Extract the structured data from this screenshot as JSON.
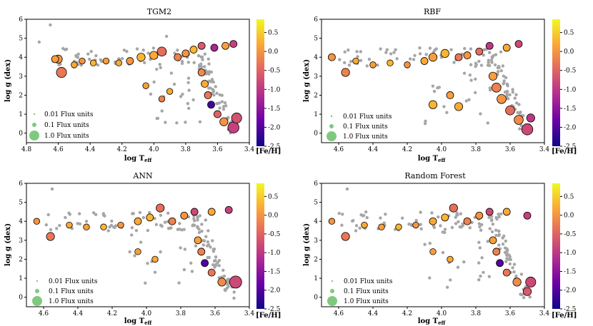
{
  "chart_data": [
    {
      "type": "scatter",
      "title": "TGM2",
      "xlabel": "log T",
      "xlabel_sub": "eff",
      "ylabel": "log g (dex)",
      "xlim": [
        4.8,
        3.4
      ],
      "ylim": [
        -0.5,
        6
      ],
      "xticks": [
        "4.8",
        "4.6",
        "4.4",
        "4.2",
        "4.0",
        "3.8",
        "3.6",
        "3.4"
      ],
      "yticks": [
        "0",
        "1",
        "2",
        "3",
        "4",
        "5",
        "6"
      ],
      "legend": [
        "0.01 Flux units",
        "0.1 Flux units",
        "1.0 Flux units"
      ],
      "colorbar": {
        "label": "[Fe/H]",
        "range": [
          -2.5,
          0.85
        ],
        "ticks": [
          "0.5",
          "0.0",
          "-0.5",
          "-1.0",
          "-1.5",
          "-2.0",
          "-2.5"
        ]
      },
      "points": [
        {
          "x": 4.72,
          "y": 4.8,
          "feh": null,
          "s": 0.3
        },
        {
          "x": 4.65,
          "y": 5.7,
          "feh": null,
          "s": 0.2
        },
        {
          "x": 4.6,
          "y": 3.9,
          "feh": 0.0,
          "s": 0.6
        },
        {
          "x": 4.58,
          "y": 3.2,
          "feh": -0.3,
          "s": 0.8
        },
        {
          "x": 4.62,
          "y": 3.9,
          "feh": 0.1,
          "s": 0.5
        },
        {
          "x": 4.5,
          "y": 3.6,
          "feh": 0.2,
          "s": 0.4
        },
        {
          "x": 4.45,
          "y": 3.8,
          "feh": 0.0,
          "s": 0.4
        },
        {
          "x": 4.38,
          "y": 3.7,
          "feh": 0.3,
          "s": 0.4
        },
        {
          "x": 4.3,
          "y": 3.8,
          "feh": 0.1,
          "s": 0.4
        },
        {
          "x": 4.22,
          "y": 3.7,
          "feh": 0.2,
          "s": 0.4
        },
        {
          "x": 4.15,
          "y": 3.8,
          "feh": 0.0,
          "s": 0.5
        },
        {
          "x": 4.08,
          "y": 4.0,
          "feh": 0.3,
          "s": 0.6
        },
        {
          "x": 4.0,
          "y": 4.1,
          "feh": 0.2,
          "s": 0.6
        },
        {
          "x": 3.95,
          "y": 4.3,
          "feh": -0.4,
          "s": 0.7
        },
        {
          "x": 3.92,
          "y": 5.1,
          "feh": null,
          "s": 0.3
        },
        {
          "x": 3.85,
          "y": 4.0,
          "feh": -0.2,
          "s": 0.5
        },
        {
          "x": 3.8,
          "y": 4.2,
          "feh": 0.0,
          "s": 0.5
        },
        {
          "x": 3.75,
          "y": 4.4,
          "feh": 0.3,
          "s": 0.5
        },
        {
          "x": 3.7,
          "y": 4.6,
          "feh": -0.6,
          "s": 0.5
        },
        {
          "x": 3.62,
          "y": 4.5,
          "feh": -1.2,
          "s": 0.5
        },
        {
          "x": 3.55,
          "y": 4.6,
          "feh": 0.1,
          "s": 0.5
        },
        {
          "x": 3.5,
          "y": 4.7,
          "feh": -0.9,
          "s": 0.5
        },
        {
          "x": 3.7,
          "y": 3.2,
          "feh": -0.1,
          "s": 0.5
        },
        {
          "x": 3.68,
          "y": 2.6,
          "feh": 0.2,
          "s": 0.5
        },
        {
          "x": 3.66,
          "y": 2.0,
          "feh": -0.3,
          "s": 0.5
        },
        {
          "x": 3.64,
          "y": 1.5,
          "feh": -2.1,
          "s": 0.5
        },
        {
          "x": 3.6,
          "y": 1.0,
          "feh": -0.5,
          "s": 0.5
        },
        {
          "x": 3.56,
          "y": 0.6,
          "feh": 0.0,
          "s": 0.6
        },
        {
          "x": 3.5,
          "y": 0.3,
          "feh": -0.9,
          "s": 0.9
        },
        {
          "x": 3.48,
          "y": 0.8,
          "feh": -0.7,
          "s": 0.8
        },
        {
          "x": 3.9,
          "y": 2.2,
          "feh": 0.2,
          "s": 0.4
        },
        {
          "x": 3.95,
          "y": 1.8,
          "feh": -0.2,
          "s": 0.4
        },
        {
          "x": 4.05,
          "y": 2.5,
          "feh": 0.1,
          "s": 0.4
        }
      ]
    },
    {
      "type": "scatter",
      "title": "RBF",
      "xlabel": "log T",
      "xlabel_sub": "eff",
      "ylabel": "log g (dex)",
      "xlim": [
        4.7,
        3.4
      ],
      "ylim": [
        -0.5,
        6
      ],
      "xticks": [
        "4.6",
        "4.4",
        "4.2",
        "4.0",
        "3.8",
        "3.6",
        "3.4"
      ],
      "yticks": [
        "0",
        "1",
        "2",
        "3",
        "4",
        "5",
        "6"
      ],
      "legend": [
        "0.01 Flux units",
        "0.1 Flux units",
        "1.0 Flux units"
      ],
      "colorbar": {
        "label": "[Fe/H]",
        "range": [
          -2.5,
          0.85
        ],
        "ticks": [
          "0.5",
          "0.0",
          "-0.5",
          "-1.0",
          "-1.5",
          "-2.0",
          "-2.5"
        ]
      },
      "points": [
        {
          "x": 4.64,
          "y": 4.0,
          "feh": 0.0,
          "s": 0.5
        },
        {
          "x": 4.56,
          "y": 3.2,
          "feh": -0.2,
          "s": 0.6
        },
        {
          "x": 4.5,
          "y": 3.8,
          "feh": 0.2,
          "s": 0.4
        },
        {
          "x": 4.4,
          "y": 3.6,
          "feh": 0.1,
          "s": 0.4
        },
        {
          "x": 4.3,
          "y": 3.7,
          "feh": 0.3,
          "s": 0.4
        },
        {
          "x": 4.2,
          "y": 3.6,
          "feh": 0.0,
          "s": 0.4
        },
        {
          "x": 4.1,
          "y": 3.8,
          "feh": 0.2,
          "s": 0.5
        },
        {
          "x": 4.05,
          "y": 4.0,
          "feh": 0.1,
          "s": 0.6
        },
        {
          "x": 3.98,
          "y": 4.2,
          "feh": 0.3,
          "s": 0.6
        },
        {
          "x": 3.9,
          "y": 4.0,
          "feh": -0.3,
          "s": 0.5
        },
        {
          "x": 3.85,
          "y": 4.1,
          "feh": 0.0,
          "s": 0.5
        },
        {
          "x": 3.78,
          "y": 4.3,
          "feh": -0.4,
          "s": 0.5
        },
        {
          "x": 3.72,
          "y": 4.6,
          "feh": -1.0,
          "s": 0.5
        },
        {
          "x": 3.62,
          "y": 4.5,
          "feh": 0.2,
          "s": 0.5
        },
        {
          "x": 3.55,
          "y": 4.7,
          "feh": -0.8,
          "s": 0.5
        },
        {
          "x": 3.7,
          "y": 3.0,
          "feh": 0.1,
          "s": 0.6
        },
        {
          "x": 3.68,
          "y": 2.4,
          "feh": -0.2,
          "s": 0.7
        },
        {
          "x": 3.65,
          "y": 1.8,
          "feh": 0.0,
          "s": 0.7
        },
        {
          "x": 3.6,
          "y": 1.2,
          "feh": -0.4,
          "s": 0.7
        },
        {
          "x": 3.55,
          "y": 0.7,
          "feh": -0.1,
          "s": 0.7
        },
        {
          "x": 3.5,
          "y": 0.2,
          "feh": -0.8,
          "s": 0.9
        },
        {
          "x": 3.48,
          "y": 0.8,
          "feh": -1.0,
          "s": 0.6
        },
        {
          "x": 4.05,
          "y": 1.5,
          "feh": 0.3,
          "s": 0.6
        },
        {
          "x": 3.95,
          "y": 2.0,
          "feh": 0.1,
          "s": 0.5
        },
        {
          "x": 3.9,
          "y": 1.4,
          "feh": 0.2,
          "s": 0.6
        }
      ]
    },
    {
      "type": "scatter",
      "title": "ANN",
      "xlabel": "log T",
      "xlabel_sub": "eff",
      "ylabel": "log g (dex)",
      "xlim": [
        4.7,
        3.4
      ],
      "ylim": [
        -0.5,
        6
      ],
      "xticks": [
        "4.6",
        "4.4",
        "4.2",
        "4.0",
        "3.8",
        "3.6",
        "3.4"
      ],
      "yticks": [
        "0",
        "1",
        "2",
        "3",
        "4",
        "5",
        "6"
      ],
      "legend": [
        "0.01 Flux units",
        "0.1 Flux units",
        "1.0 Flux units"
      ],
      "colorbar": {
        "label": "[Fe/H]",
        "range": [
          -2.5,
          0.85
        ],
        "ticks": [
          "0.5",
          "0.0",
          "-0.5",
          "-1.0",
          "-1.5",
          "-2.0",
          "-2.5"
        ]
      },
      "points": [
        {
          "x": 4.64,
          "y": 4.0,
          "feh": 0.0,
          "s": 0.4
        },
        {
          "x": 4.56,
          "y": 3.2,
          "feh": -0.3,
          "s": 0.6
        },
        {
          "x": 4.55,
          "y": 5.7,
          "feh": null,
          "s": 0.2
        },
        {
          "x": 4.45,
          "y": 3.8,
          "feh": 0.2,
          "s": 0.4
        },
        {
          "x": 4.35,
          "y": 3.7,
          "feh": 0.1,
          "s": 0.4
        },
        {
          "x": 4.25,
          "y": 3.7,
          "feh": 0.3,
          "s": 0.4
        },
        {
          "x": 4.15,
          "y": 3.8,
          "feh": 0.0,
          "s": 0.4
        },
        {
          "x": 4.05,
          "y": 4.0,
          "feh": 0.2,
          "s": 0.5
        },
        {
          "x": 3.98,
          "y": 4.2,
          "feh": 0.3,
          "s": 0.5
        },
        {
          "x": 3.92,
          "y": 4.7,
          "feh": -0.4,
          "s": 0.6
        },
        {
          "x": 3.85,
          "y": 4.0,
          "feh": -0.2,
          "s": 0.5
        },
        {
          "x": 3.78,
          "y": 4.3,
          "feh": 0.0,
          "s": 0.5
        },
        {
          "x": 3.72,
          "y": 4.5,
          "feh": -0.8,
          "s": 0.5
        },
        {
          "x": 3.62,
          "y": 4.5,
          "feh": 0.2,
          "s": 0.5
        },
        {
          "x": 3.52,
          "y": 4.6,
          "feh": -0.9,
          "s": 0.5
        },
        {
          "x": 3.7,
          "y": 3.0,
          "feh": 0.1,
          "s": 0.5
        },
        {
          "x": 3.68,
          "y": 2.4,
          "feh": -0.2,
          "s": 0.5
        },
        {
          "x": 3.66,
          "y": 1.8,
          "feh": -2.0,
          "s": 0.5
        },
        {
          "x": 3.62,
          "y": 1.3,
          "feh": -0.3,
          "s": 0.5
        },
        {
          "x": 3.56,
          "y": 0.8,
          "feh": -0.1,
          "s": 0.6
        },
        {
          "x": 3.48,
          "y": 0.8,
          "feh": -0.8,
          "s": 1.0
        },
        {
          "x": 3.95,
          "y": 2.0,
          "feh": 0.2,
          "s": 0.4
        },
        {
          "x": 4.05,
          "y": 2.4,
          "feh": 0.1,
          "s": 0.4
        }
      ]
    },
    {
      "type": "scatter",
      "title": "Random Forest",
      "xlabel": "log T",
      "xlabel_sub": "eff",
      "ylabel": "log g (dex)",
      "xlim": [
        4.7,
        3.4
      ],
      "ylim": [
        -0.5,
        6
      ],
      "xticks": [
        "4.6",
        "4.4",
        "4.2",
        "4.0",
        "3.8",
        "3.6",
        "3.4"
      ],
      "yticks": [
        "0",
        "1",
        "2",
        "3",
        "4",
        "5",
        "6"
      ],
      "legend": [
        "0.01 Flux units",
        "0.1 Flux units",
        "1.0 Flux units"
      ],
      "colorbar": {
        "label": "[Fe/H]",
        "range": [
          -2.5,
          0.85
        ],
        "ticks": [
          "0.5",
          "0.0",
          "-0.5",
          "-1.0",
          "-1.5",
          "-2.0",
          "-2.5"
        ]
      },
      "points": [
        {
          "x": 4.64,
          "y": 4.0,
          "feh": 0.0,
          "s": 0.4
        },
        {
          "x": 4.56,
          "y": 3.2,
          "feh": -0.3,
          "s": 0.6
        },
        {
          "x": 4.55,
          "y": 5.7,
          "feh": null,
          "s": 0.2
        },
        {
          "x": 4.45,
          "y": 3.8,
          "feh": 0.2,
          "s": 0.4
        },
        {
          "x": 4.35,
          "y": 3.7,
          "feh": 0.1,
          "s": 0.4
        },
        {
          "x": 4.25,
          "y": 3.7,
          "feh": 0.3,
          "s": 0.4
        },
        {
          "x": 4.15,
          "y": 3.8,
          "feh": 0.0,
          "s": 0.4
        },
        {
          "x": 4.05,
          "y": 4.0,
          "feh": 0.2,
          "s": 0.5
        },
        {
          "x": 3.98,
          "y": 4.2,
          "feh": 0.3,
          "s": 0.5
        },
        {
          "x": 3.93,
          "y": 4.7,
          "feh": -0.4,
          "s": 0.6
        },
        {
          "x": 3.85,
          "y": 4.0,
          "feh": -0.2,
          "s": 0.5
        },
        {
          "x": 3.78,
          "y": 4.3,
          "feh": 0.0,
          "s": 0.5
        },
        {
          "x": 3.72,
          "y": 4.5,
          "feh": -0.8,
          "s": 0.5
        },
        {
          "x": 3.62,
          "y": 4.5,
          "feh": 0.2,
          "s": 0.5
        },
        {
          "x": 3.5,
          "y": 4.3,
          "feh": -0.9,
          "s": 0.5
        },
        {
          "x": 3.7,
          "y": 3.0,
          "feh": 0.1,
          "s": 0.5
        },
        {
          "x": 3.68,
          "y": 2.4,
          "feh": -0.2,
          "s": 0.5
        },
        {
          "x": 3.66,
          "y": 1.8,
          "feh": -2.0,
          "s": 0.5
        },
        {
          "x": 3.62,
          "y": 1.3,
          "feh": -0.3,
          "s": 0.5
        },
        {
          "x": 3.56,
          "y": 0.8,
          "feh": -0.1,
          "s": 0.6
        },
        {
          "x": 3.48,
          "y": 0.8,
          "feh": -0.8,
          "s": 0.8
        },
        {
          "x": 3.5,
          "y": 0.3,
          "feh": -0.6,
          "s": 0.6
        },
        {
          "x": 3.95,
          "y": 2.0,
          "feh": 0.2,
          "s": 0.4
        },
        {
          "x": 4.05,
          "y": 2.4,
          "feh": 0.1,
          "s": 0.4
        }
      ]
    }
  ],
  "colors": {
    "background_points": "#a6a6a6",
    "legend_marker": "#7fc97f",
    "colormap": [
      "#0d0887",
      "#6a00a8",
      "#b12a90",
      "#e16462",
      "#fca636",
      "#f0f921"
    ]
  }
}
